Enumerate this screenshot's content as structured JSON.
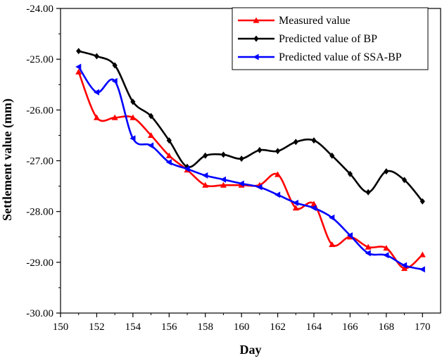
{
  "chart_data": {
    "type": "line",
    "title": "",
    "xlabel": "Day",
    "ylabel": "Settlement value (mm)",
    "xlim": [
      150,
      171
    ],
    "ylim": [
      -30.0,
      -24.0
    ],
    "x_ticks": [
      150,
      152,
      154,
      156,
      158,
      160,
      162,
      164,
      166,
      168,
      170
    ],
    "x_tick_labels": [
      "150",
      "152",
      "154",
      "156",
      "158",
      "160",
      "162",
      "164",
      "166",
      "168",
      "170"
    ],
    "y_ticks": [
      -24.0,
      -25.0,
      -26.0,
      -27.0,
      -28.0,
      -29.0,
      -30.0
    ],
    "y_tick_labels": [
      "-24.00",
      "-25.00",
      "-26.00",
      "-27.00",
      "-28.00",
      "-29.00",
      "-30.00"
    ],
    "x": [
      151,
      152,
      153,
      154,
      155,
      156,
      157,
      158,
      159,
      160,
      161,
      162,
      163,
      164,
      165,
      166,
      167,
      168,
      169,
      170
    ],
    "legend_position": "top-right",
    "series": [
      {
        "name": "Measured value",
        "color": "#ff0000",
        "marker": "triangle-up",
        "values": [
          -25.25,
          -26.15,
          -26.15,
          -26.15,
          -26.5,
          -26.9,
          -27.18,
          -27.48,
          -27.48,
          -27.48,
          -27.48,
          -27.27,
          -27.93,
          -27.85,
          -28.65,
          -28.5,
          -28.7,
          -28.72,
          -29.12,
          -28.85
        ]
      },
      {
        "name": "Predicted value of BP",
        "color": "#000000",
        "marker": "diamond",
        "values": [
          -24.84,
          -24.94,
          -25.12,
          -25.84,
          -26.12,
          -26.6,
          -27.12,
          -26.9,
          -26.88,
          -26.96,
          -26.79,
          -26.81,
          -26.63,
          -26.6,
          -26.9,
          -27.26,
          -27.62,
          -27.21,
          -27.38,
          -27.8
        ]
      },
      {
        "name": "Predicted value of SSA-BP",
        "color": "#0000ff",
        "marker": "triangle-left",
        "values": [
          -25.15,
          -25.65,
          -25.43,
          -26.56,
          -26.7,
          -27.03,
          -27.16,
          -27.29,
          -27.37,
          -27.45,
          -27.52,
          -27.67,
          -27.83,
          -27.93,
          -28.12,
          -28.47,
          -28.82,
          -28.86,
          -29.06,
          -29.14
        ]
      }
    ]
  }
}
